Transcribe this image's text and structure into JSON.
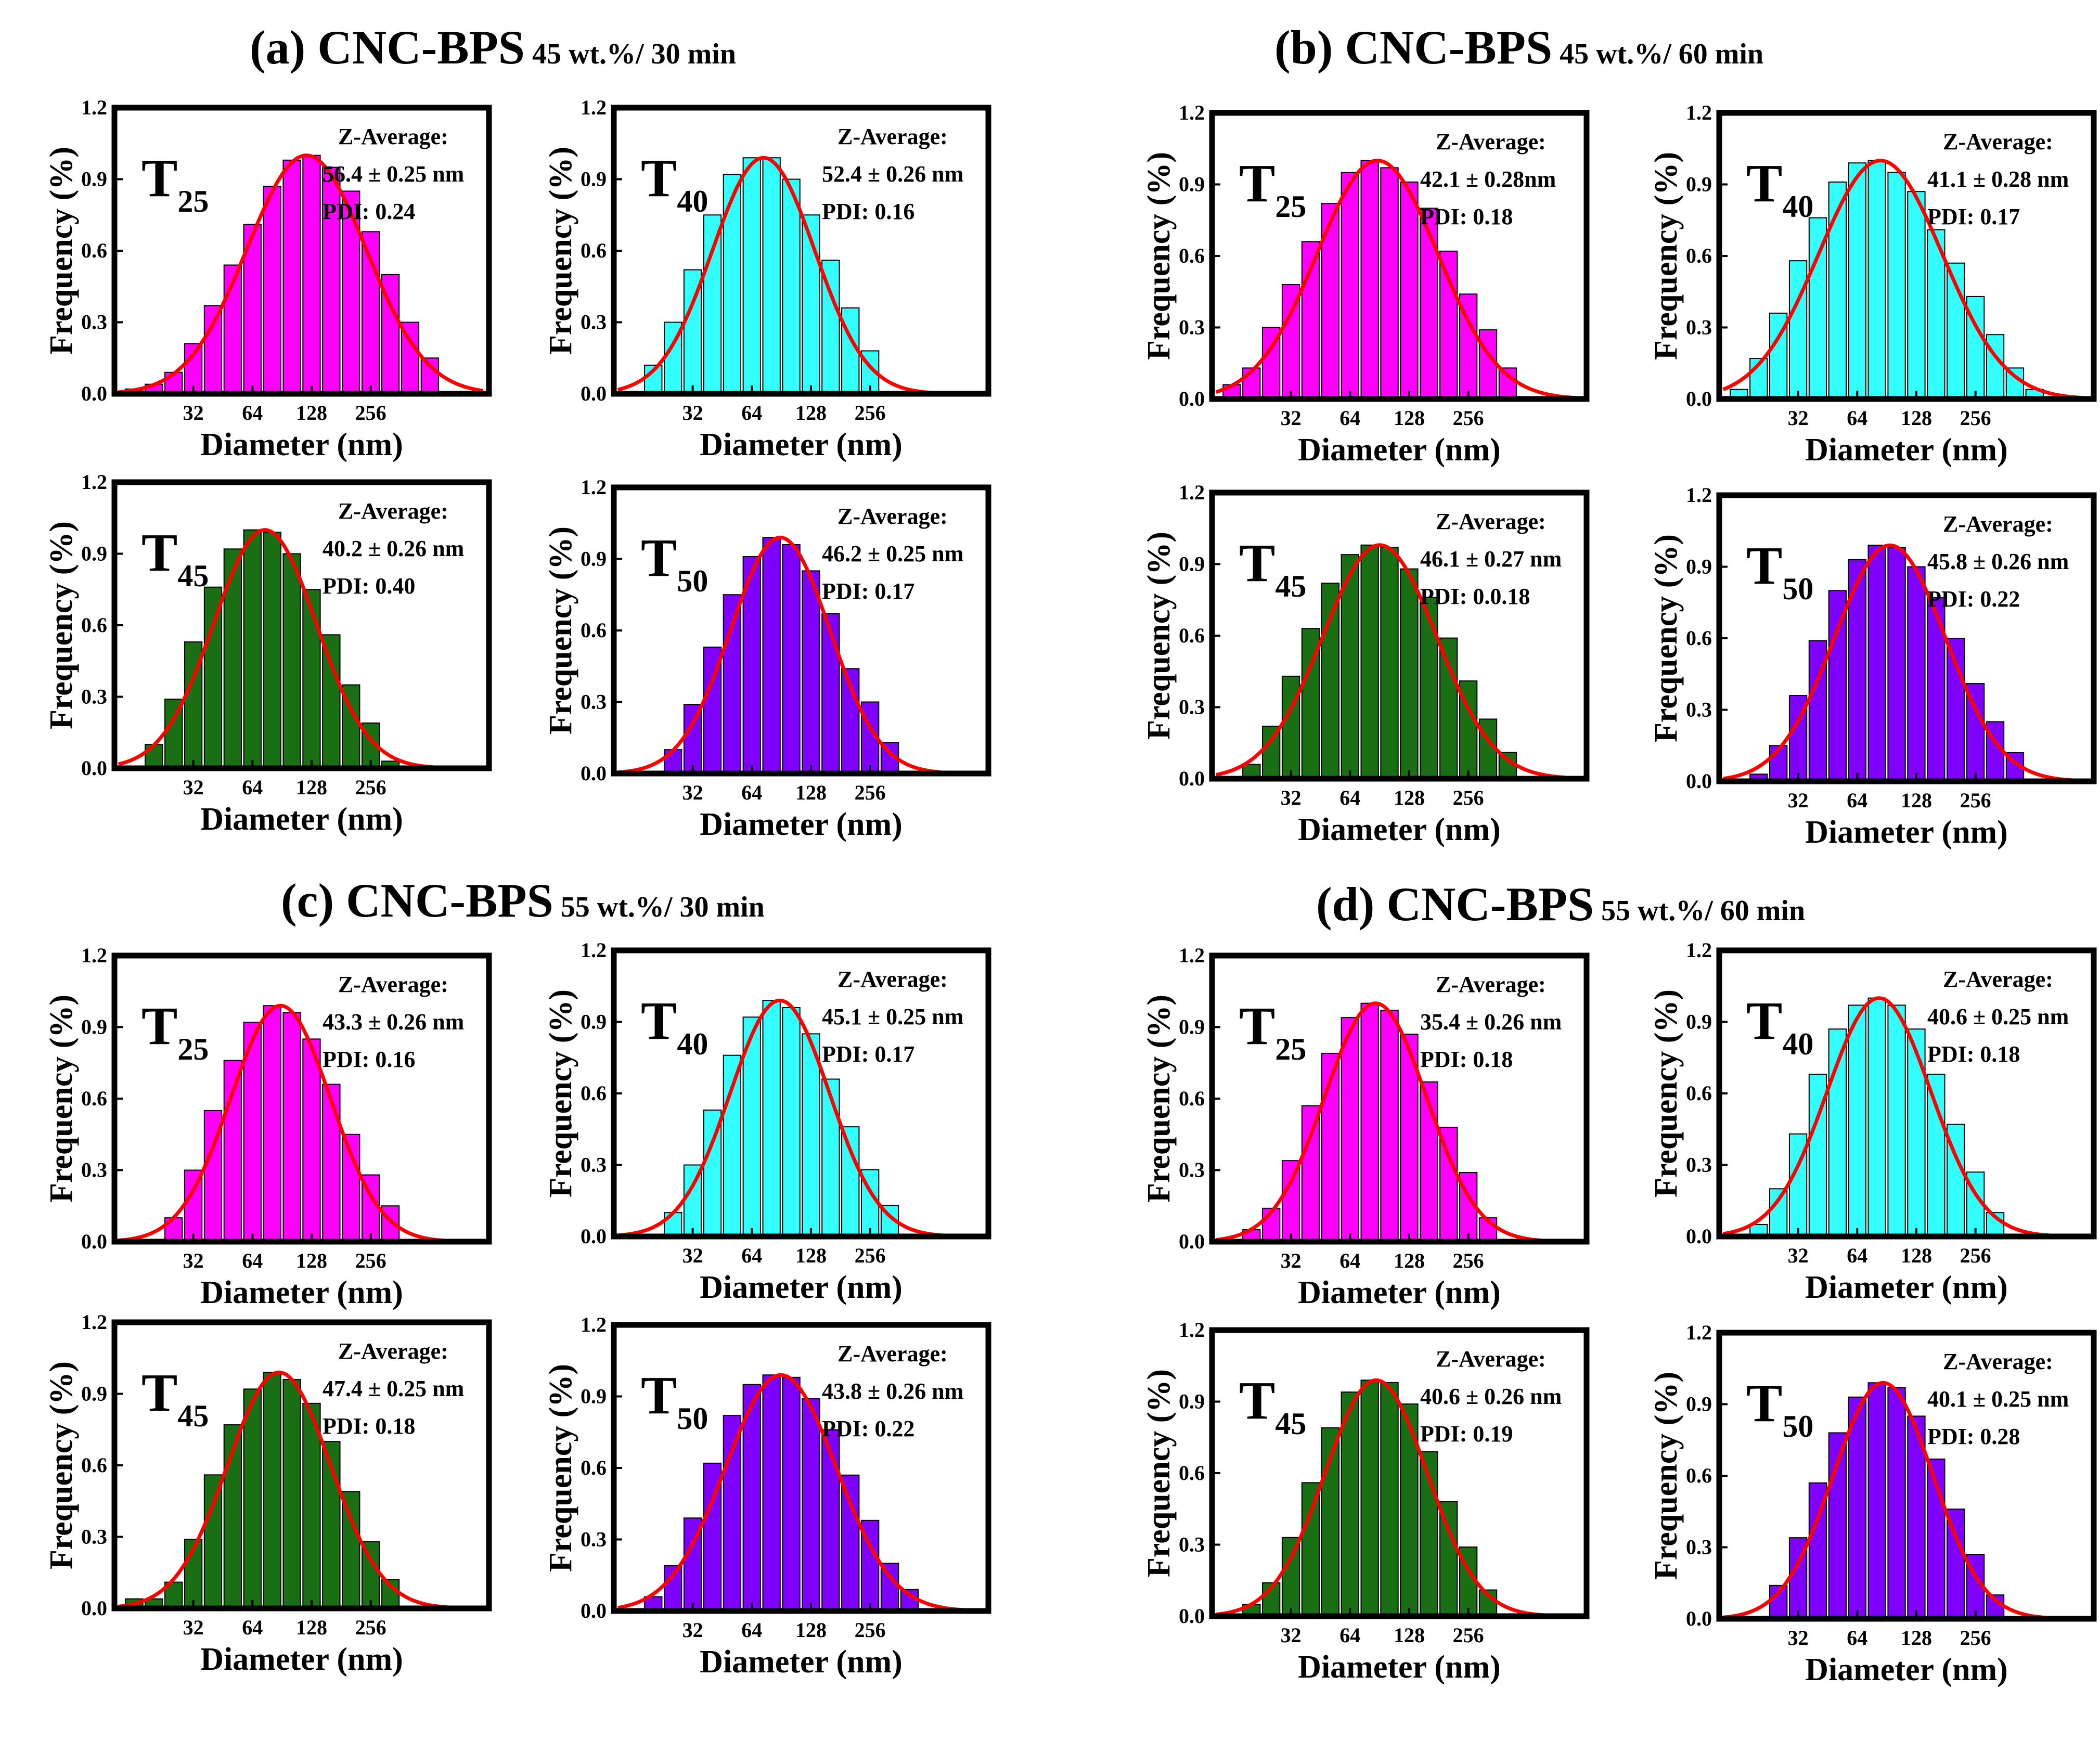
{
  "figure": {
    "sections": [
      {
        "label": "(a) CNC-BPS",
        "condition": "45 wt.%/ 30 min"
      },
      {
        "label": "(b) CNC-BPS",
        "condition": "45 wt.%/ 60 min"
      },
      {
        "label": "(c) CNC-BPS",
        "condition": "55 wt.%/ 30 min"
      },
      {
        "label": "(d) CNC-BPS",
        "condition": "55 wt.%/ 60 min"
      }
    ],
    "colors": {
      "T25": "#ff00ff",
      "T40": "#33ffff",
      "T45": "#1a6e14",
      "T50": "#7f00ff",
      "fit": "#ff0000"
    }
  },
  "chart_data": [
    {
      "type": "bar",
      "section": "a",
      "title": "T",
      "title_sub": "25",
      "xlabel": "Diameter (nm)",
      "ylabel": "Frequency (%)",
      "ylim": [
        0,
        1.2
      ],
      "yticks": [
        "0.0",
        "0.3",
        "0.6",
        "0.9",
        "1.2"
      ],
      "xticks": [
        "32",
        "64",
        "128",
        "256"
      ],
      "annotation": {
        "label": "Z-Average:",
        "value": "56.4 ± 0.25 nm",
        "pdi": "PDI: 0.24"
      },
      "color": "#ff00ff",
      "fit_color": "#ff0000",
      "bins": [
        10,
        11,
        12,
        13,
        14,
        15,
        16,
        17,
        18,
        19,
        20,
        21,
        22,
        23,
        24,
        25
      ],
      "values": [
        0.02,
        0.04,
        0.09,
        0.21,
        0.37,
        0.54,
        0.71,
        0.87,
        0.98,
        1.0,
        0.95,
        0.85,
        0.68,
        0.5,
        0.3,
        0.15
      ]
    },
    {
      "type": "bar",
      "section": "a",
      "title": "T",
      "title_sub": "40",
      "xlabel": "Diameter (nm)",
      "ylabel": "Frequency (%)",
      "ylim": [
        0,
        1.2
      ],
      "yticks": [
        "0.0",
        "0.3",
        "0.6",
        "0.9",
        "1.2"
      ],
      "xticks": [
        "32",
        "64",
        "128",
        "256"
      ],
      "annotation": {
        "label": "Z-Average:",
        "value": "52.4 ± 0.26 nm",
        "pdi": "PDI: 0.16"
      },
      "color": "#33ffff",
      "fit_color": "#ff0000",
      "bins": [
        11,
        12,
        13,
        14,
        15,
        16,
        17,
        18,
        19,
        20,
        21,
        22
      ],
      "values": [
        0.12,
        0.3,
        0.52,
        0.75,
        0.92,
        0.99,
        0.99,
        0.9,
        0.75,
        0.56,
        0.36,
        0.18
      ]
    },
    {
      "type": "bar",
      "section": "b",
      "title": "T",
      "title_sub": "25",
      "xlabel": "Diameter (nm)",
      "ylabel": "Frequency (%)",
      "ylim": [
        0,
        1.2
      ],
      "yticks": [
        "0.0",
        "0.3",
        "0.6",
        "0.9",
        "1.2"
      ],
      "xticks": [
        "32",
        "64",
        "128",
        "256"
      ],
      "annotation": {
        "label": "Z-Average:",
        "value": "42.1 ± 0.28nm",
        "pdi": "PDI: 0.18"
      },
      "color": "#ff00ff",
      "fit_color": "#ff0000",
      "bins": [
        10,
        11,
        12,
        13,
        14,
        15,
        16,
        17,
        18,
        19,
        20,
        21,
        22,
        23,
        24
      ],
      "values": [
        0.06,
        0.13,
        0.3,
        0.48,
        0.66,
        0.82,
        0.95,
        1.0,
        0.97,
        0.91,
        0.8,
        0.62,
        0.44,
        0.29,
        0.13
      ]
    },
    {
      "type": "bar",
      "section": "b",
      "title": "T",
      "title_sub": "40",
      "xlabel": "Diameter (nm)",
      "ylabel": "Frequency (%)",
      "ylim": [
        0,
        1.2
      ],
      "yticks": [
        "0.0",
        "0.3",
        "0.6",
        "0.9",
        "1.2"
      ],
      "xticks": [
        "32",
        "64",
        "128",
        "256"
      ],
      "annotation": {
        "label": "Z-Average:",
        "value": "41.1 ± 0.28 nm",
        "pdi": "PDI: 0.17"
      },
      "color": "#33ffff",
      "fit_color": "#ff0000",
      "bins": [
        10,
        11,
        12,
        13,
        14,
        15,
        16,
        17,
        18,
        19,
        20,
        21,
        22,
        23,
        24,
        25
      ],
      "values": [
        0.04,
        0.17,
        0.36,
        0.58,
        0.76,
        0.91,
        0.99,
        1.0,
        0.95,
        0.87,
        0.71,
        0.57,
        0.43,
        0.27,
        0.13,
        0.04
      ]
    },
    {
      "type": "bar",
      "section": "a",
      "title": "T",
      "title_sub": "45",
      "xlabel": "Diameter (nm)",
      "ylabel": "Frequency (%)",
      "ylim": [
        0,
        1.2
      ],
      "yticks": [
        "0.0",
        "0.3",
        "0.6",
        "0.9",
        "1.2"
      ],
      "xticks": [
        "32",
        "64",
        "128",
        "256"
      ],
      "annotation": {
        "label": "Z-Average:",
        "value": "40.2 ± 0.26 nm",
        "pdi": "PDI: 0.40"
      },
      "color": "#1a6e14",
      "fit_color": "#ff0000",
      "bins": [
        11,
        12,
        13,
        14,
        15,
        16,
        17,
        18,
        19,
        20,
        21,
        22,
        23
      ],
      "values": [
        0.1,
        0.29,
        0.53,
        0.76,
        0.92,
        1.0,
        0.99,
        0.9,
        0.75,
        0.56,
        0.35,
        0.19,
        0.03
      ]
    },
    {
      "type": "bar",
      "section": "a",
      "title": "T",
      "title_sub": "50",
      "xlabel": "Diameter (nm)",
      "ylabel": "Frequency (%)",
      "ylim": [
        0,
        1.2
      ],
      "yticks": [
        "0.0",
        "0.3",
        "0.6",
        "0.9",
        "1.2"
      ],
      "xticks": [
        "32",
        "64",
        "128",
        "256"
      ],
      "annotation": {
        "label": "Z-Average:",
        "value": "46.2 ± 0.25 nm",
        "pdi": "PDI: 0.17"
      },
      "color": "#7f00ff",
      "fit_color": "#ff0000",
      "bins": [
        12,
        13,
        14,
        15,
        16,
        17,
        18,
        19,
        20,
        21,
        22,
        23
      ],
      "values": [
        0.1,
        0.29,
        0.53,
        0.75,
        0.91,
        0.99,
        0.96,
        0.85,
        0.67,
        0.44,
        0.3,
        0.13
      ]
    },
    {
      "type": "bar",
      "section": "b",
      "title": "T",
      "title_sub": "45",
      "xlabel": "Diameter (nm)",
      "ylabel": "Frequency (%)",
      "ylim": [
        0,
        1.2
      ],
      "yticks": [
        "0.0",
        "0.3",
        "0.6",
        "0.9",
        "1.2"
      ],
      "xticks": [
        "32",
        "64",
        "128",
        "256"
      ],
      "annotation": {
        "label": "Z-Average:",
        "value": "46.1 ± 0.27 nm",
        "pdi": "PDI: 0.0.18"
      },
      "color": "#1a6e14",
      "fit_color": "#ff0000",
      "bins": [
        11,
        12,
        13,
        14,
        15,
        16,
        17,
        18,
        19,
        20,
        21,
        22,
        23,
        24
      ],
      "values": [
        0.06,
        0.22,
        0.43,
        0.63,
        0.82,
        0.94,
        0.98,
        0.97,
        0.88,
        0.76,
        0.59,
        0.41,
        0.25,
        0.11
      ]
    },
    {
      "type": "bar",
      "section": "b",
      "title": "T",
      "title_sub": "50",
      "xlabel": "Diameter (nm)",
      "ylabel": "Frequency (%)",
      "ylim": [
        0,
        1.2
      ],
      "yticks": [
        "0.0",
        "0.3",
        "0.6",
        "0.9",
        "1.2"
      ],
      "xticks": [
        "32",
        "64",
        "128",
        "256"
      ],
      "annotation": {
        "label": "Z-Average:",
        "value": "45.8 ± 0.26 nm",
        "pdi": "PDI: 0.22"
      },
      "color": "#7f00ff",
      "fit_color": "#ff0000",
      "bins": [
        11,
        12,
        13,
        14,
        15,
        16,
        17,
        18,
        19,
        20,
        21,
        22,
        23,
        24
      ],
      "values": [
        0.03,
        0.15,
        0.36,
        0.59,
        0.8,
        0.93,
        0.99,
        0.98,
        0.9,
        0.77,
        0.6,
        0.41,
        0.25,
        0.12
      ]
    },
    {
      "type": "bar",
      "section": "c",
      "title": "T",
      "title_sub": "25",
      "xlabel": "Diameter (nm)",
      "ylabel": "Frequency (%)",
      "ylim": [
        0,
        1.2
      ],
      "yticks": [
        "0.0",
        "0.3",
        "0.6",
        "0.9",
        "1.2"
      ],
      "xticks": [
        "32",
        "64",
        "128",
        "256"
      ],
      "annotation": {
        "label": "Z-Average:",
        "value": "43.3 ± 0.26 nm",
        "pdi": "PDI: 0.16"
      },
      "color": "#ff00ff",
      "fit_color": "#ff0000",
      "bins": [
        12,
        13,
        14,
        15,
        16,
        17,
        18,
        19,
        20,
        21,
        22,
        23
      ],
      "values": [
        0.1,
        0.3,
        0.55,
        0.76,
        0.92,
        0.99,
        0.96,
        0.85,
        0.66,
        0.45,
        0.28,
        0.15
      ]
    },
    {
      "type": "bar",
      "section": "c",
      "title": "T",
      "title_sub": "40",
      "xlabel": "Diameter (nm)",
      "ylabel": "Frequency (%)",
      "ylim": [
        0,
        1.2
      ],
      "yticks": [
        "0.0",
        "0.3",
        "0.6",
        "0.9",
        "1.2"
      ],
      "xticks": [
        "32",
        "64",
        "128",
        "256"
      ],
      "annotation": {
        "label": "Z-Average:",
        "value": "45.1 ± 0.25 nm",
        "pdi": "PDI: 0.17"
      },
      "color": "#33ffff",
      "fit_color": "#ff0000",
      "bins": [
        12,
        13,
        14,
        15,
        16,
        17,
        18,
        19,
        20,
        21,
        22,
        23
      ],
      "values": [
        0.1,
        0.3,
        0.53,
        0.76,
        0.92,
        0.99,
        0.96,
        0.85,
        0.66,
        0.46,
        0.28,
        0.13
      ]
    },
    {
      "type": "bar",
      "section": "d",
      "title": "T",
      "title_sub": "25",
      "xlabel": "Diameter (nm)",
      "ylabel": "Frequency (%)",
      "ylim": [
        0,
        1.2
      ],
      "yticks": [
        "0.0",
        "0.3",
        "0.6",
        "0.9",
        "1.2"
      ],
      "xticks": [
        "32",
        "64",
        "128",
        "256"
      ],
      "annotation": {
        "label": "Z-Average:",
        "value": "35.4 ± 0.26 nm",
        "pdi": "PDI: 0.18"
      },
      "color": "#ff00ff",
      "fit_color": "#ff0000",
      "bins": [
        11,
        12,
        13,
        14,
        15,
        16,
        17,
        18,
        19,
        20,
        21,
        22,
        23
      ],
      "values": [
        0.05,
        0.14,
        0.34,
        0.57,
        0.79,
        0.94,
        1.0,
        0.97,
        0.87,
        0.67,
        0.48,
        0.29,
        0.1
      ]
    },
    {
      "type": "bar",
      "section": "d",
      "title": "T",
      "title_sub": "40",
      "xlabel": "Diameter (nm)",
      "ylabel": "Frequency (%)",
      "ylim": [
        0,
        1.2
      ],
      "yticks": [
        "0.0",
        "0.3",
        "0.6",
        "0.9",
        "1.2"
      ],
      "xticks": [
        "32",
        "64",
        "128",
        "256"
      ],
      "annotation": {
        "label": "Z-Average:",
        "value": "40.6 ± 0.25 nm",
        "pdi": "PDI: 0.18"
      },
      "color": "#33ffff",
      "fit_color": "#ff0000",
      "bins": [
        11,
        12,
        13,
        14,
        15,
        16,
        17,
        18,
        19,
        20,
        21,
        22,
        23
      ],
      "values": [
        0.05,
        0.2,
        0.43,
        0.68,
        0.87,
        0.97,
        1.0,
        0.97,
        0.87,
        0.68,
        0.47,
        0.27,
        0.1
      ]
    },
    {
      "type": "bar",
      "section": "c",
      "title": "T",
      "title_sub": "45",
      "xlabel": "Diameter (nm)",
      "ylabel": "Frequency (%)",
      "ylim": [
        0,
        1.2
      ],
      "yticks": [
        "0.0",
        "0.3",
        "0.6",
        "0.9",
        "1.2"
      ],
      "xticks": [
        "32",
        "64",
        "128",
        "256"
      ],
      "annotation": {
        "label": "Z-Average:",
        "value": "47.4 ± 0.25 nm",
        "pdi": "PDI: 0.18"
      },
      "color": "#1a6e14",
      "fit_color": "#ff0000",
      "bins": [
        10,
        11,
        12,
        13,
        14,
        15,
        16,
        17,
        18,
        19,
        20,
        21,
        22,
        23
      ],
      "values": [
        0.04,
        0.04,
        0.11,
        0.29,
        0.56,
        0.77,
        0.92,
        0.99,
        0.96,
        0.86,
        0.7,
        0.49,
        0.28,
        0.12
      ]
    },
    {
      "type": "bar",
      "section": "c",
      "title": "T",
      "title_sub": "50",
      "xlabel": "Diameter (nm)",
      "ylabel": "Frequency (%)",
      "ylim": [
        0,
        1.2
      ],
      "yticks": [
        "0.0",
        "0.3",
        "0.6",
        "0.9",
        "1.2"
      ],
      "xticks": [
        "32",
        "64",
        "128",
        "256"
      ],
      "annotation": {
        "label": "Z-Average:",
        "value": "43.8 ± 0.26 nm",
        "pdi": "PDI: 0.22"
      },
      "color": "#7f00ff",
      "fit_color": "#ff0000",
      "bins": [
        11,
        12,
        13,
        14,
        15,
        16,
        17,
        18,
        19,
        20,
        21,
        22,
        23,
        24
      ],
      "values": [
        0.06,
        0.19,
        0.39,
        0.62,
        0.82,
        0.95,
        0.99,
        0.98,
        0.89,
        0.76,
        0.57,
        0.38,
        0.2,
        0.09
      ]
    },
    {
      "type": "bar",
      "section": "d",
      "title": "T",
      "title_sub": "45",
      "xlabel": "Diameter (nm)",
      "ylabel": "Frequency (%)",
      "ylim": [
        0,
        1.2
      ],
      "yticks": [
        "0.0",
        "0.3",
        "0.6",
        "0.9",
        "1.2"
      ],
      "xticks": [
        "32",
        "64",
        "128",
        "256"
      ],
      "annotation": {
        "label": "Z-Average:",
        "value": "40.6 ± 0.26 nm",
        "pdi": "PDI: 0.19"
      },
      "color": "#1a6e14",
      "fit_color": "#ff0000",
      "bins": [
        11,
        12,
        13,
        14,
        15,
        16,
        17,
        18,
        19,
        20,
        21,
        22,
        23
      ],
      "values": [
        0.05,
        0.14,
        0.33,
        0.56,
        0.79,
        0.94,
        0.99,
        0.98,
        0.89,
        0.69,
        0.48,
        0.29,
        0.11
      ]
    },
    {
      "type": "bar",
      "section": "d",
      "title": "T",
      "title_sub": "50",
      "xlabel": "Diameter (nm)",
      "ylabel": "Frequency (%)",
      "ylim": [
        0,
        1.2
      ],
      "yticks": [
        "0.0",
        "0.3",
        "0.6",
        "0.9",
        "1.2"
      ],
      "xticks": [
        "32",
        "64",
        "128",
        "256"
      ],
      "annotation": {
        "label": "Z-Average:",
        "value": "40.1 ± 0.25 nm",
        "pdi": "PDI: 0.28"
      },
      "color": "#7f00ff",
      "fit_color": "#ff0000",
      "bins": [
        12,
        13,
        14,
        15,
        16,
        17,
        18,
        19,
        20,
        21,
        22,
        23
      ],
      "values": [
        0.14,
        0.34,
        0.57,
        0.78,
        0.93,
        0.99,
        0.97,
        0.85,
        0.67,
        0.46,
        0.27,
        0.1
      ]
    }
  ]
}
